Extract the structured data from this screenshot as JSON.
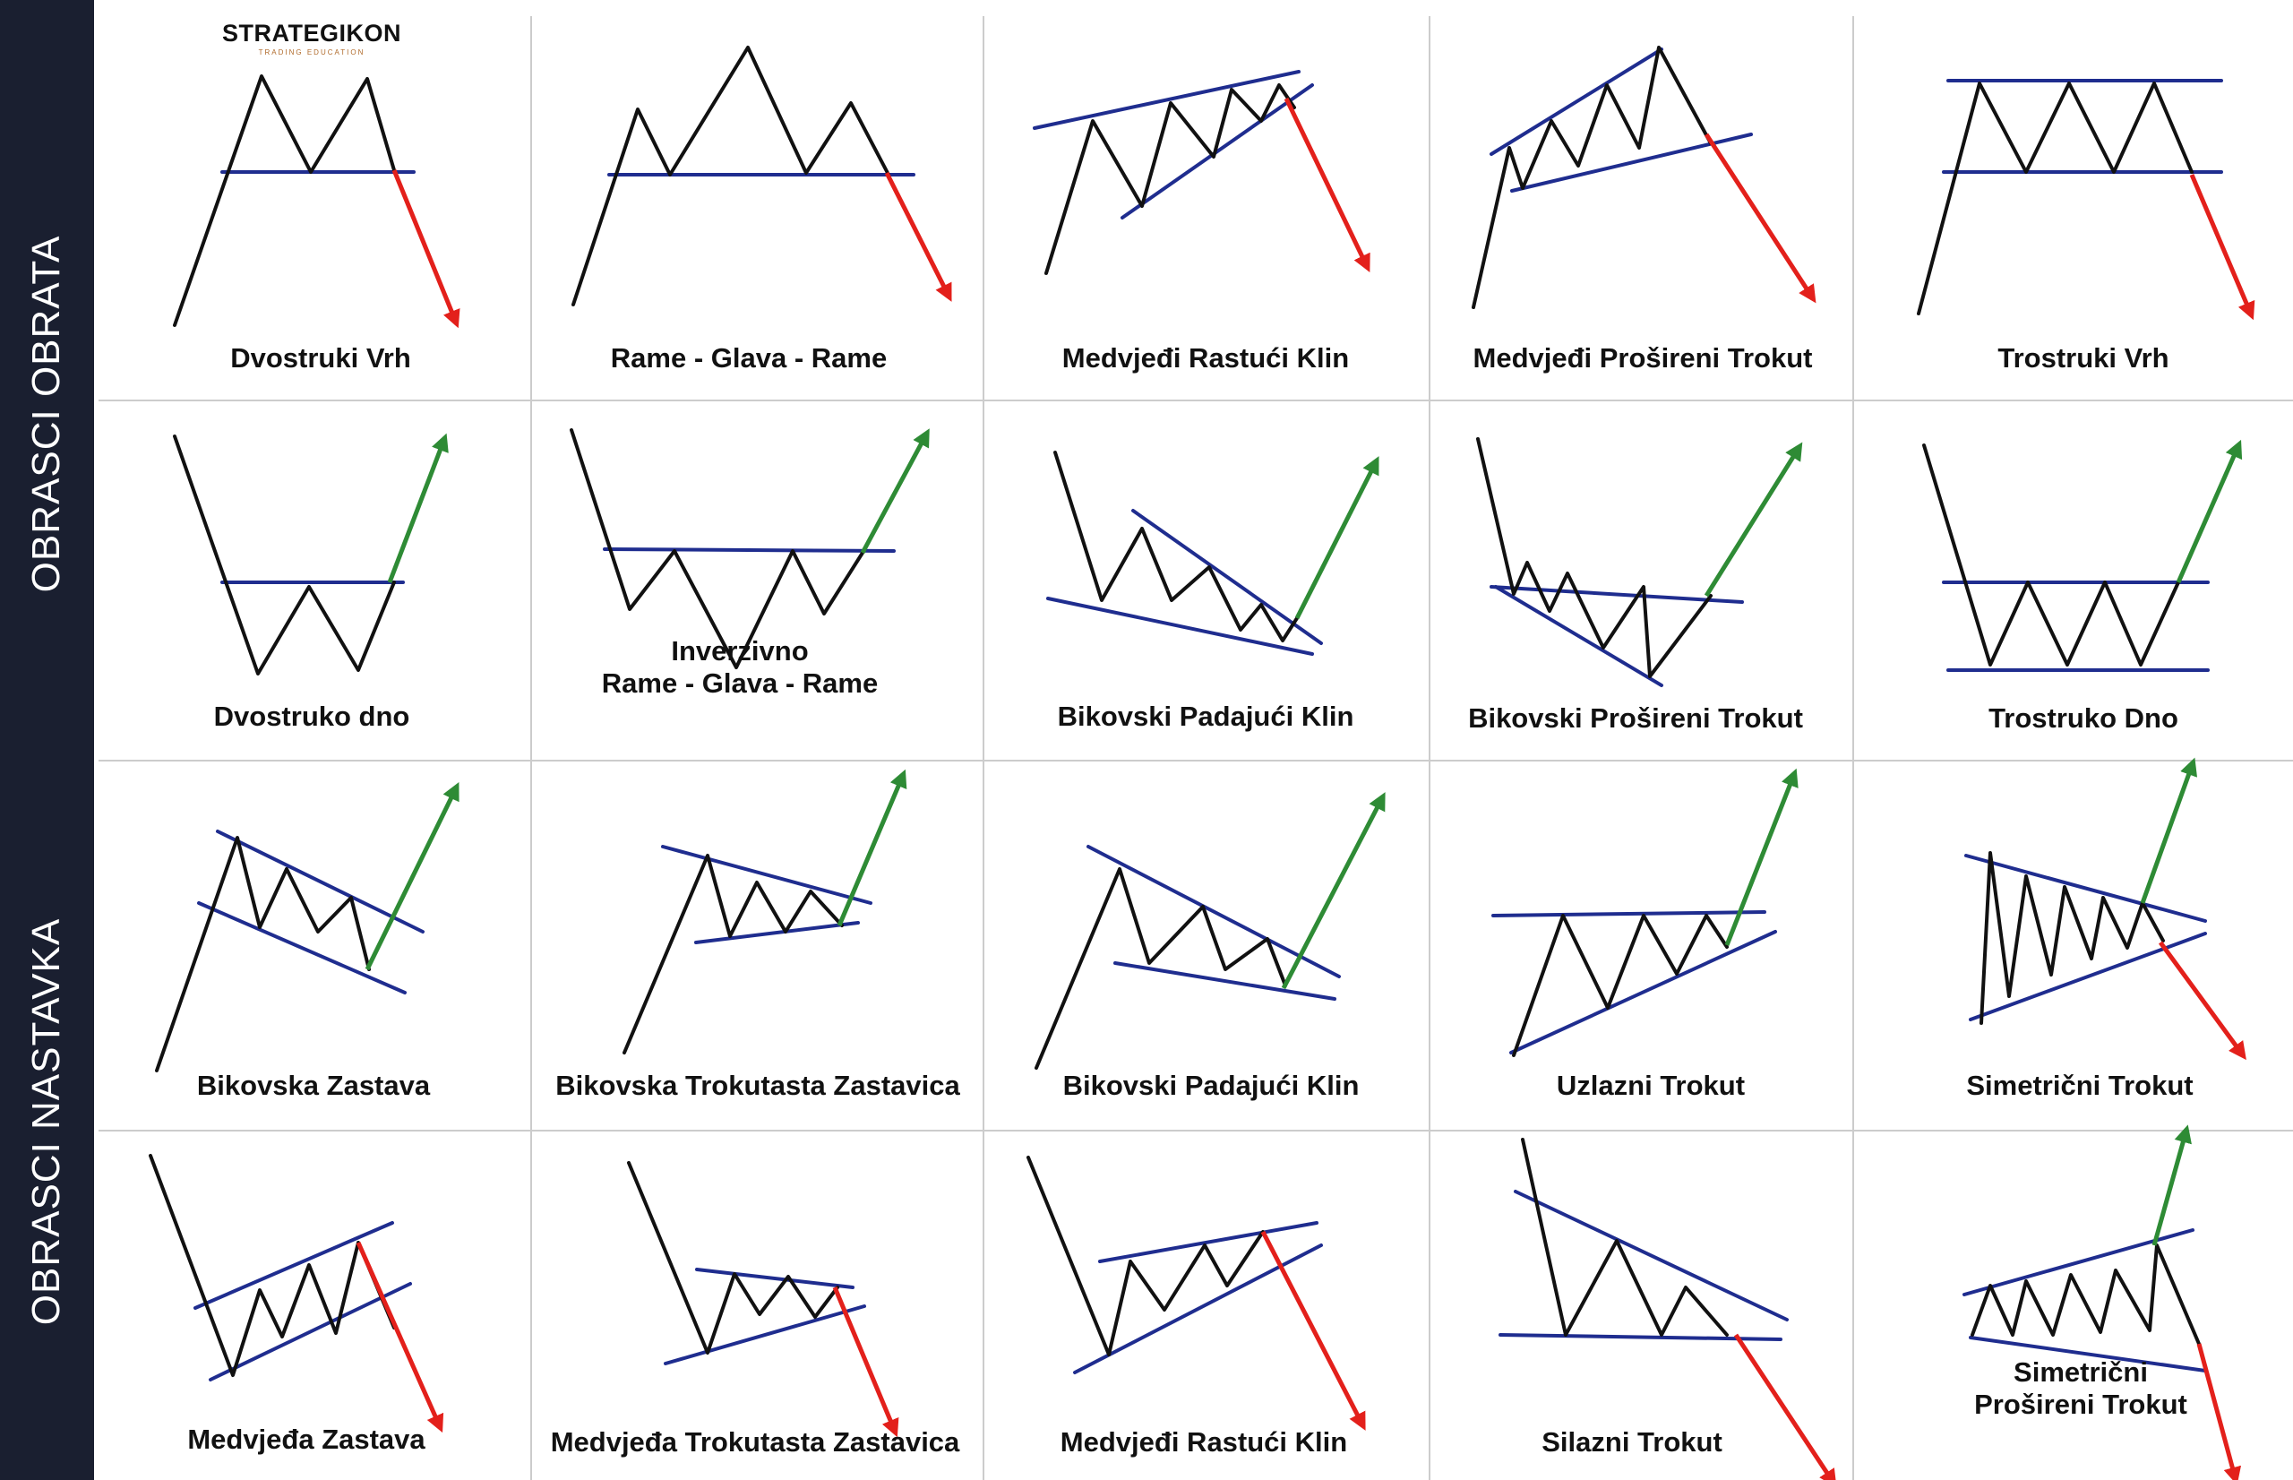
{
  "sidebar": {
    "top_label": "OBRASCI  OBRATA",
    "bottom_label": "OBRASCI  NASTAVKA"
  },
  "logo": {
    "name": "STRATEGIKON",
    "tagline": "TRADING EDUCATION"
  },
  "colors": {
    "sidebar": "#1a1f30",
    "price_line": "#111111",
    "trend_line": "#1f2d8f",
    "bearish_arrow": "#e3201b",
    "bullish_arrow": "#2e8b35",
    "grid_line": "#cccccc"
  },
  "patterns": [
    {
      "label": "Dvostruki Vrh",
      "direction": "down"
    },
    {
      "label": "Rame - Glava - Rame",
      "direction": "down"
    },
    {
      "label": "Medvjeđi Rastući Klin",
      "direction": "down"
    },
    {
      "label": "Medvjeđi Prošireni Trokut",
      "direction": "down"
    },
    {
      "label": "Trostruki Vrh",
      "direction": "down"
    },
    {
      "label": "Dvostruko dno",
      "direction": "up"
    },
    {
      "label": "Inverzivno\nRame - Glava - Rame",
      "direction": "up"
    },
    {
      "label": "Bikovski Padajući Klin",
      "direction": "up"
    },
    {
      "label": "Bikovski Prošireni Trokut",
      "direction": "up"
    },
    {
      "label": "Trostruko Dno",
      "direction": "up"
    },
    {
      "label": "Bikovska Zastava",
      "direction": "up"
    },
    {
      "label": "Bikovska Trokutasta Zastavica",
      "direction": "up"
    },
    {
      "label": "Bikovski Padajući Klin",
      "direction": "up"
    },
    {
      "label": "Uzlazni Trokut",
      "direction": "up"
    },
    {
      "label": "Simetrični Trokut",
      "direction": "both"
    },
    {
      "label": "Medvjeđa Zastava",
      "direction": "down"
    },
    {
      "label": "Medvjeđa Trokutasta Zastavica",
      "direction": "down"
    },
    {
      "label": "Medvjeđi Rastući Klin",
      "direction": "down"
    },
    {
      "label": "Silazni Trokut",
      "direction": "down"
    },
    {
      "label": "Simetrični\nProšireni Trokut",
      "direction": "both"
    }
  ]
}
